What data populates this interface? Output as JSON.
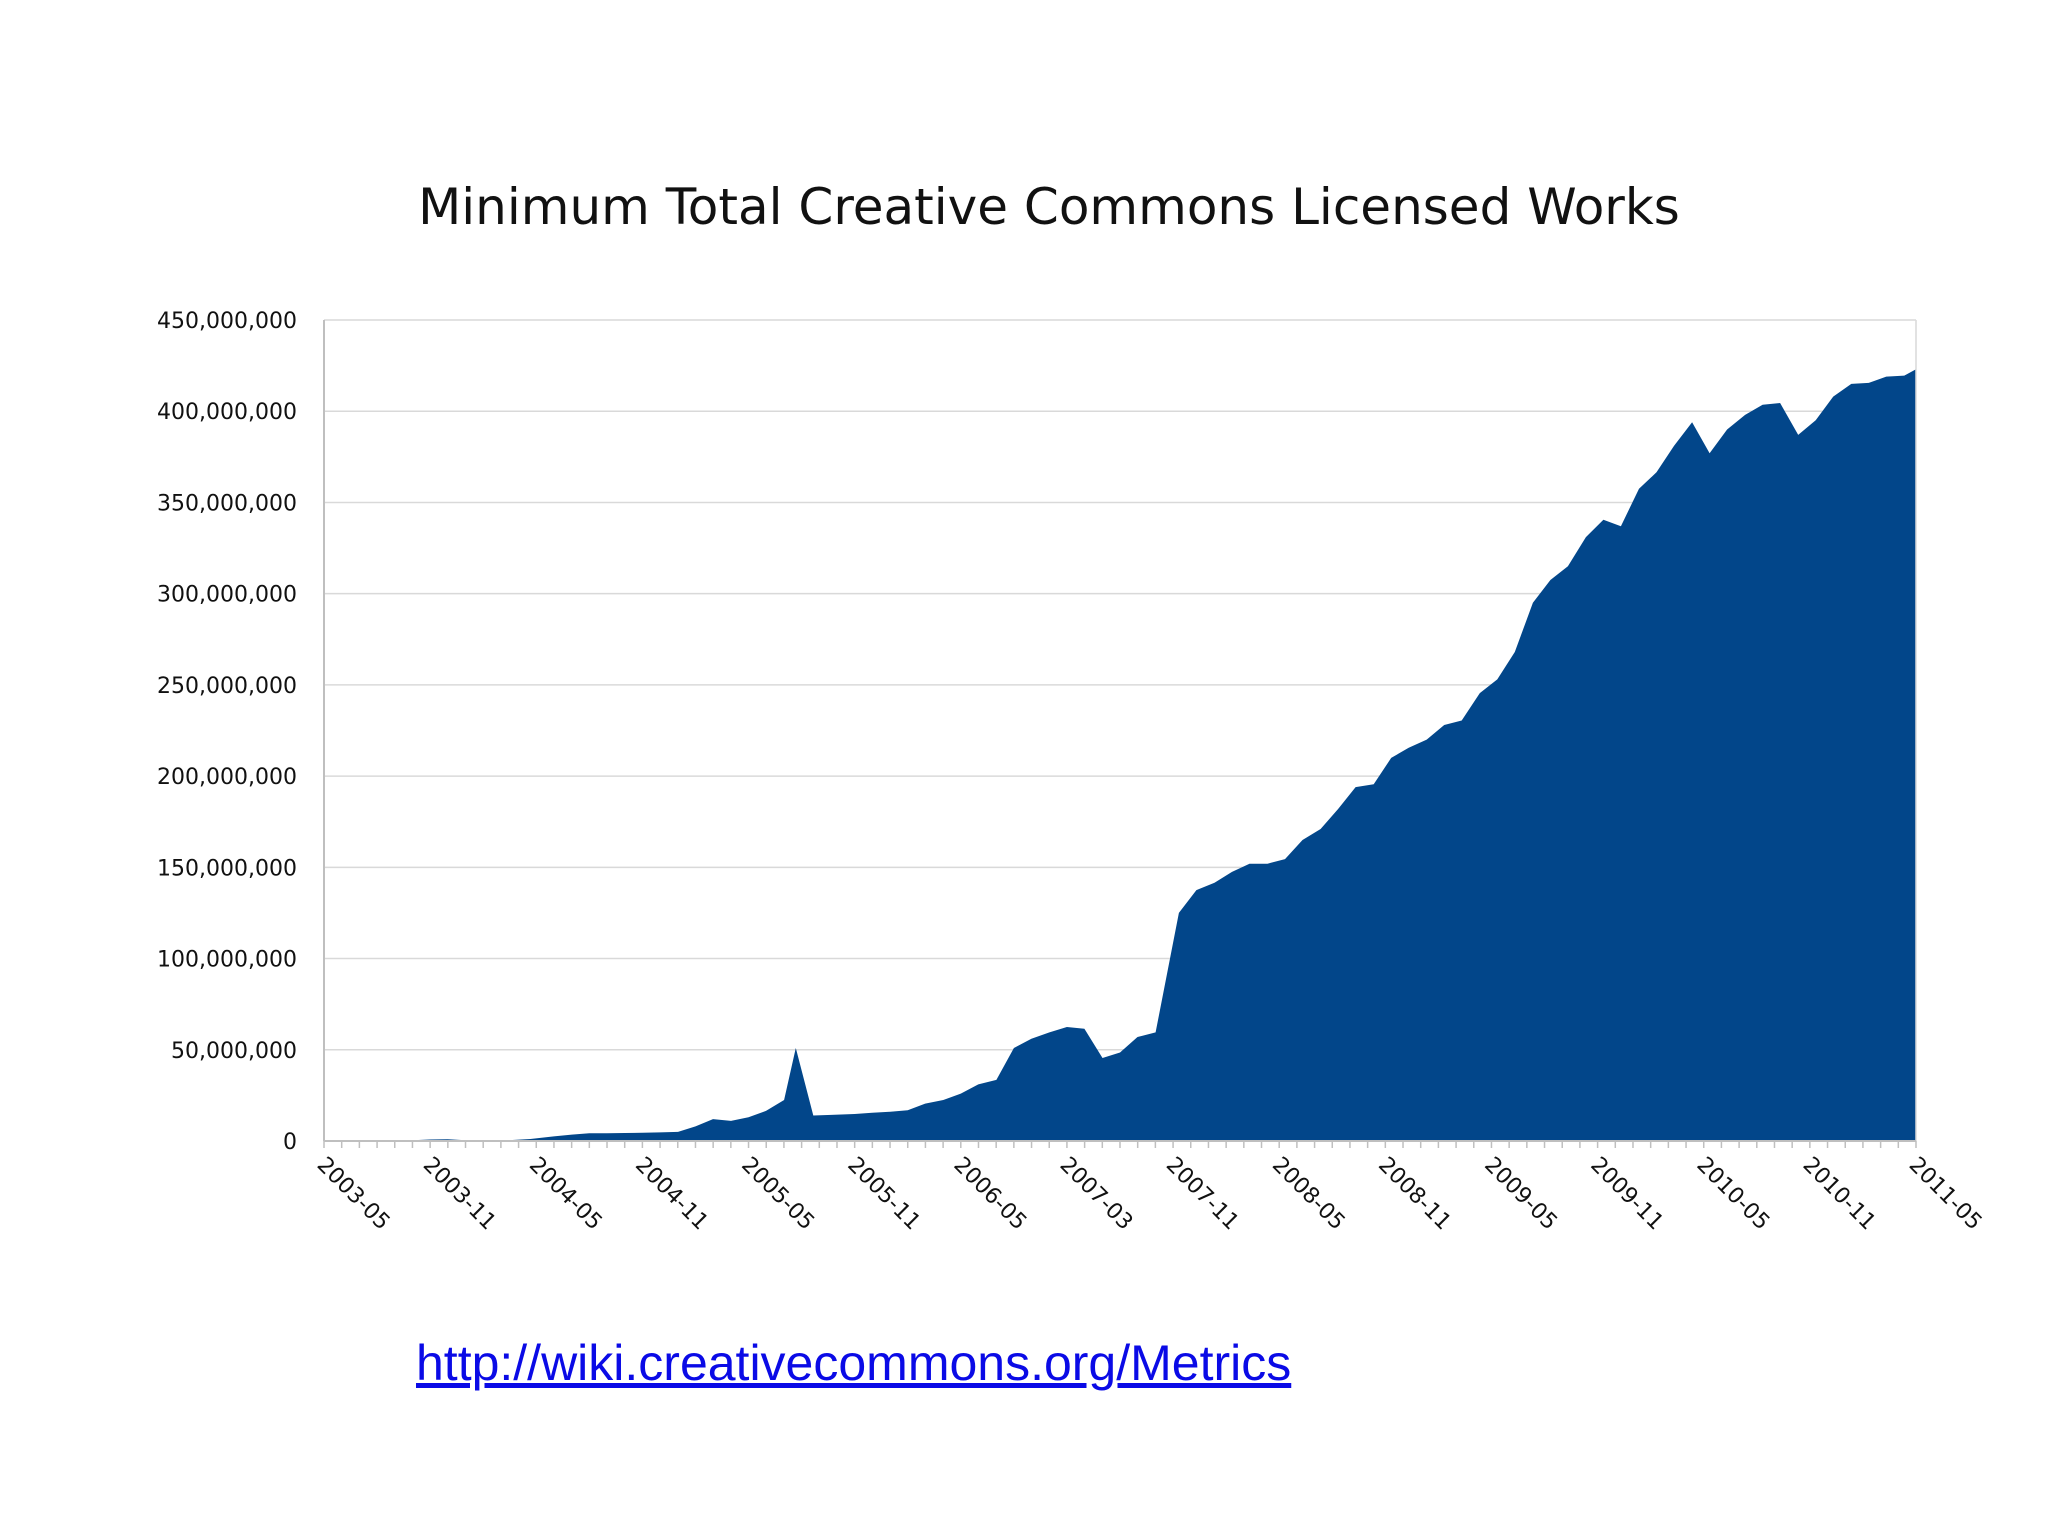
{
  "source_link": "http://wiki.creativecommons.org/Metrics",
  "colors": {
    "area_fill": "#02468a",
    "gridline": "#d9d9d9",
    "axis": "#bfbfbf",
    "link": "#0a0ae6"
  },
  "chart_data": {
    "type": "area",
    "title": "Minimum Total Creative Commons Licensed Works",
    "xlabel": "",
    "ylabel": "",
    "ylim": [
      0,
      450000000
    ],
    "grid": true,
    "legend": "none",
    "y_ticks": [
      "0",
      "50,000,000",
      "100,000,000",
      "150,000,000",
      "200,000,000",
      "250,000,000",
      "300,000,000",
      "350,000,000",
      "400,000,000",
      "450,000,000"
    ],
    "x_start": "2003-05",
    "x_end": "2011-05",
    "x_tick_labels": [
      "2003-05",
      "2003-11",
      "2004-05",
      "2004-11",
      "2005-05",
      "2005-11",
      "2006-05",
      "2007-03",
      "2007-11",
      "2008-05",
      "2008-11",
      "2009-05",
      "2009-11",
      "2010-05",
      "2010-11",
      "2011-05"
    ],
    "series": [
      {
        "values": [
          [
            0.0,
            0
          ],
          [
            0.033,
            0
          ],
          [
            0.067,
            0
          ],
          [
            0.1,
            0
          ],
          [
            0.133,
            200000
          ],
          [
            0.167,
            400000
          ],
          [
            0.2,
            800000
          ],
          [
            0.233,
            1000000
          ],
          [
            0.267,
            400000
          ],
          [
            0.3,
            0
          ],
          [
            0.333,
            200000
          ],
          [
            0.389,
            1100000
          ],
          [
            0.433,
            2500000
          ],
          [
            0.467,
            3500000
          ],
          [
            0.5,
            4200000
          ],
          [
            0.533,
            4300000
          ],
          [
            0.567,
            4400000
          ],
          [
            0.6,
            4500000
          ],
          [
            0.633,
            4700000
          ],
          [
            0.667,
            5000000
          ],
          [
            0.7,
            8000000
          ],
          [
            0.733,
            12000000
          ],
          [
            0.767,
            11000000
          ],
          [
            0.8,
            13000000
          ],
          [
            0.833,
            16500000
          ],
          [
            0.867,
            22500000
          ],
          [
            0.889,
            51000000
          ],
          [
            0.922,
            14000000
          ],
          [
            0.956,
            14300000
          ],
          [
            1.0,
            14800000
          ],
          [
            1.033,
            15500000
          ],
          [
            1.067,
            16000000
          ],
          [
            1.1,
            16800000
          ],
          [
            1.133,
            20500000
          ],
          [
            1.167,
            22500000
          ],
          [
            1.2,
            26000000
          ],
          [
            1.233,
            31000000
          ],
          [
            1.267,
            33500000
          ],
          [
            1.3,
            51000000
          ],
          [
            1.333,
            56000000
          ],
          [
            1.367,
            59500000
          ],
          [
            1.4,
            62500000
          ],
          [
            1.433,
            61500000
          ],
          [
            1.467,
            45500000
          ],
          [
            1.5,
            48500000
          ],
          [
            1.533,
            57000000
          ],
          [
            1.567,
            59500000
          ],
          [
            1.611,
            125000000
          ],
          [
            1.644,
            137500000
          ],
          [
            1.678,
            141500000
          ],
          [
            1.711,
            147500000
          ],
          [
            1.744,
            152000000
          ],
          [
            1.778,
            152000000
          ],
          [
            1.811,
            154500000
          ],
          [
            1.844,
            165000000
          ],
          [
            1.878,
            171000000
          ],
          [
            1.911,
            182000000
          ],
          [
            1.944,
            194000000
          ],
          [
            1.978,
            195500000
          ],
          [
            2.011,
            210000000
          ],
          [
            2.044,
            215500000
          ],
          [
            2.078,
            220000000
          ],
          [
            2.111,
            228000000
          ],
          [
            2.144,
            230500000
          ],
          [
            2.178,
            245500000
          ],
          [
            2.211,
            253000000
          ],
          [
            2.244,
            268000000
          ],
          [
            2.278,
            295000000
          ],
          [
            2.311,
            307500000
          ],
          [
            2.344,
            315000000
          ],
          [
            2.378,
            331000000
          ],
          [
            2.411,
            340500000
          ],
          [
            2.444,
            337000000
          ],
          [
            2.478,
            357500000
          ],
          [
            2.511,
            366500000
          ],
          [
            2.544,
            381000000
          ],
          [
            2.578,
            394000000
          ],
          [
            2.611,
            377000000
          ],
          [
            2.644,
            390000000
          ],
          [
            2.678,
            398000000
          ],
          [
            2.711,
            403500000
          ],
          [
            2.744,
            404500000
          ],
          [
            2.778,
            387000000
          ],
          [
            2.811,
            395000000
          ],
          [
            2.844,
            408000000
          ],
          [
            2.878,
            415000000
          ],
          [
            2.911,
            415500000
          ],
          [
            2.944,
            419000000
          ],
          [
            2.978,
            419500000
          ],
          [
            3.0,
            423000000
          ]
        ]
      }
    ]
  }
}
